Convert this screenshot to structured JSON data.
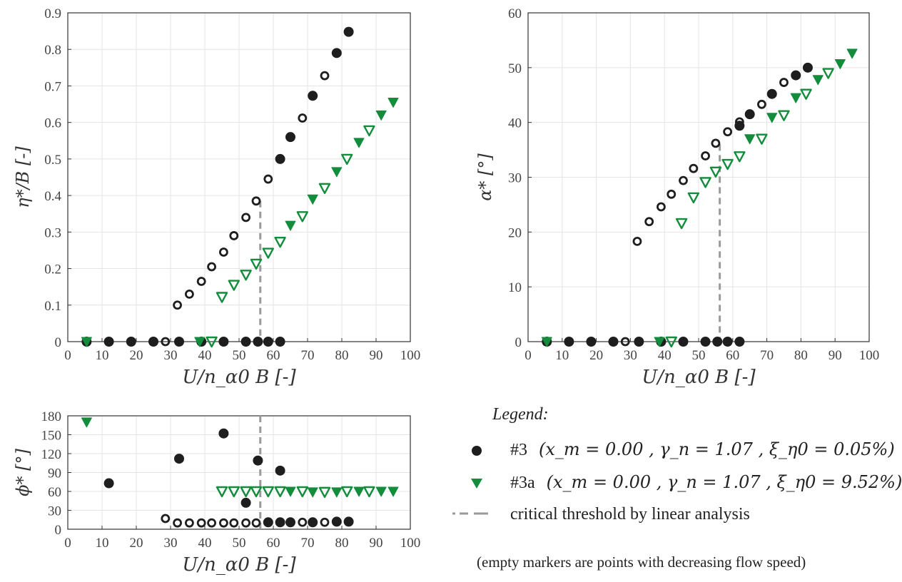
{
  "colors": {
    "series1": "#1e1e1e",
    "series2": "#138c3c",
    "critical": "#9a9a9a",
    "grid": "#e4e4e4"
  },
  "chart_data": [
    {
      "id": "eta",
      "type": "scatter",
      "xlabel": "U/n_α0 B [-]",
      "ylabel": "η*/B [-]",
      "xlim": [
        0,
        100
      ],
      "ylim": [
        0,
        0.9
      ],
      "xticks": [
        "0",
        "10",
        "20",
        "30",
        "40",
        "50",
        "60",
        "70",
        "80",
        "90",
        "100"
      ],
      "yticks": [
        "0",
        "0.1",
        "0.2",
        "0.3",
        "0.4",
        "0.5",
        "0.6",
        "0.7",
        "0.8",
        "0.9"
      ],
      "grid": true,
      "critical_x": 56.2,
      "series": [
        {
          "name": "#3",
          "marker": "circle",
          "points": [
            {
              "x": 5.5,
              "y": 0,
              "filled": true
            },
            {
              "x": 12,
              "y": 0,
              "filled": true
            },
            {
              "x": 18.5,
              "y": 0,
              "filled": true
            },
            {
              "x": 25,
              "y": 0,
              "filled": true
            },
            {
              "x": 28.5,
              "y": 0,
              "filled": false
            },
            {
              "x": 32.5,
              "y": 0,
              "filled": true
            },
            {
              "x": 39,
              "y": 0,
              "filled": true
            },
            {
              "x": 45.5,
              "y": 0,
              "filled": true
            },
            {
              "x": 52,
              "y": 0,
              "filled": true
            },
            {
              "x": 55.5,
              "y": 0,
              "filled": true
            },
            {
              "x": 58.5,
              "y": 0,
              "filled": true
            },
            {
              "x": 62,
              "y": 0,
              "filled": true
            },
            {
              "x": 32,
              "y": 0.1,
              "filled": false
            },
            {
              "x": 35.5,
              "y": 0.13,
              "filled": false
            },
            {
              "x": 39,
              "y": 0.165,
              "filled": false
            },
            {
              "x": 42,
              "y": 0.205,
              "filled": false
            },
            {
              "x": 45.5,
              "y": 0.245,
              "filled": false
            },
            {
              "x": 48.5,
              "y": 0.29,
              "filled": false
            },
            {
              "x": 52,
              "y": 0.34,
              "filled": false
            },
            {
              "x": 55,
              "y": 0.385,
              "filled": false
            },
            {
              "x": 58.5,
              "y": 0.445,
              "filled": false
            },
            {
              "x": 62,
              "y": 0.5,
              "filled": true
            },
            {
              "x": 65,
              "y": 0.56,
              "filled": true
            },
            {
              "x": 68.5,
              "y": 0.612,
              "filled": false
            },
            {
              "x": 71.5,
              "y": 0.673,
              "filled": true
            },
            {
              "x": 75,
              "y": 0.728,
              "filled": false
            },
            {
              "x": 78.5,
              "y": 0.79,
              "filled": true
            },
            {
              "x": 82,
              "y": 0.848,
              "filled": true
            }
          ]
        },
        {
          "name": "#3a",
          "marker": "triangle",
          "points": [
            {
              "x": 5.5,
              "y": 0,
              "filled": true
            },
            {
              "x": 38.5,
              "y": 0,
              "filled": true
            },
            {
              "x": 42,
              "y": 0,
              "filled": false
            },
            {
              "x": 45,
              "y": 0.122,
              "filled": false
            },
            {
              "x": 48.5,
              "y": 0.155,
              "filled": false
            },
            {
              "x": 52,
              "y": 0.183,
              "filled": false
            },
            {
              "x": 55,
              "y": 0.213,
              "filled": false
            },
            {
              "x": 58.5,
              "y": 0.243,
              "filled": false
            },
            {
              "x": 62,
              "y": 0.273,
              "filled": false
            },
            {
              "x": 65,
              "y": 0.318,
              "filled": true
            },
            {
              "x": 68.5,
              "y": 0.343,
              "filled": false
            },
            {
              "x": 71.5,
              "y": 0.39,
              "filled": true
            },
            {
              "x": 75,
              "y": 0.42,
              "filled": false
            },
            {
              "x": 78.5,
              "y": 0.465,
              "filled": true
            },
            {
              "x": 81.5,
              "y": 0.5,
              "filled": false
            },
            {
              "x": 85,
              "y": 0.545,
              "filled": true
            },
            {
              "x": 88,
              "y": 0.578,
              "filled": false
            },
            {
              "x": 91.5,
              "y": 0.62,
              "filled": true
            },
            {
              "x": 95,
              "y": 0.655,
              "filled": true
            }
          ]
        }
      ]
    },
    {
      "id": "alpha",
      "type": "scatter",
      "xlabel": "U/n_α0 B [-]",
      "ylabel": "α* [°]",
      "xlim": [
        0,
        100
      ],
      "ylim": [
        0,
        60
      ],
      "xticks": [
        "0",
        "10",
        "20",
        "30",
        "40",
        "50",
        "60",
        "70",
        "80",
        "90",
        "100"
      ],
      "yticks": [
        "0",
        "10",
        "20",
        "30",
        "40",
        "50",
        "60"
      ],
      "grid": true,
      "critical_x": 56.2,
      "series": [
        {
          "name": "#3",
          "marker": "circle",
          "points": [
            {
              "x": 5.5,
              "y": 0,
              "filled": true
            },
            {
              "x": 12,
              "y": 0,
              "filled": true
            },
            {
              "x": 18.5,
              "y": 0,
              "filled": true
            },
            {
              "x": 25,
              "y": 0,
              "filled": true
            },
            {
              "x": 28.5,
              "y": 0,
              "filled": false
            },
            {
              "x": 32.5,
              "y": 0,
              "filled": true
            },
            {
              "x": 39,
              "y": 0,
              "filled": true
            },
            {
              "x": 45.5,
              "y": 0,
              "filled": true
            },
            {
              "x": 52,
              "y": 0,
              "filled": true
            },
            {
              "x": 55.5,
              "y": 0,
              "filled": true
            },
            {
              "x": 58.5,
              "y": 0,
              "filled": true
            },
            {
              "x": 62,
              "y": 0,
              "filled": true
            },
            {
              "x": 32,
              "y": 18.3,
              "filled": false
            },
            {
              "x": 35.5,
              "y": 21.9,
              "filled": false
            },
            {
              "x": 39,
              "y": 24.6,
              "filled": false
            },
            {
              "x": 42,
              "y": 26.9,
              "filled": false
            },
            {
              "x": 45.5,
              "y": 29.4,
              "filled": false
            },
            {
              "x": 48.5,
              "y": 31.6,
              "filled": false
            },
            {
              "x": 52,
              "y": 33.9,
              "filled": false
            },
            {
              "x": 55,
              "y": 36.2,
              "filled": false
            },
            {
              "x": 58.5,
              "y": 38.3,
              "filled": false
            },
            {
              "x": 62,
              "y": 40.1,
              "filled": false
            },
            {
              "x": 62,
              "y": 39.4,
              "filled": true
            },
            {
              "x": 65,
              "y": 41.5,
              "filled": true
            },
            {
              "x": 68.5,
              "y": 43.3,
              "filled": false
            },
            {
              "x": 71.5,
              "y": 45.2,
              "filled": true
            },
            {
              "x": 75,
              "y": 47.3,
              "filled": false
            },
            {
              "x": 78.5,
              "y": 48.6,
              "filled": true
            },
            {
              "x": 82,
              "y": 50,
              "filled": true
            }
          ]
        },
        {
          "name": "#3a",
          "marker": "triangle",
          "points": [
            {
              "x": 5.5,
              "y": 0,
              "filled": true
            },
            {
              "x": 38.5,
              "y": 0,
              "filled": true
            },
            {
              "x": 42,
              "y": 0,
              "filled": false
            },
            {
              "x": 45,
              "y": 21.6,
              "filled": false
            },
            {
              "x": 48.5,
              "y": 26.3,
              "filled": false
            },
            {
              "x": 52,
              "y": 29.1,
              "filled": false
            },
            {
              "x": 55,
              "y": 31,
              "filled": false
            },
            {
              "x": 58.5,
              "y": 32.4,
              "filled": false
            },
            {
              "x": 62,
              "y": 33.8,
              "filled": false
            },
            {
              "x": 65,
              "y": 37,
              "filled": true
            },
            {
              "x": 68.5,
              "y": 37,
              "filled": false
            },
            {
              "x": 71.5,
              "y": 40.9,
              "filled": true
            },
            {
              "x": 75,
              "y": 41.3,
              "filled": false
            },
            {
              "x": 78.5,
              "y": 44.5,
              "filled": true
            },
            {
              "x": 81.5,
              "y": 45.2,
              "filled": false
            },
            {
              "x": 85,
              "y": 47.8,
              "filled": true
            },
            {
              "x": 88,
              "y": 49,
              "filled": false
            },
            {
              "x": 91.5,
              "y": 50.7,
              "filled": true
            },
            {
              "x": 95,
              "y": 52.6,
              "filled": true
            }
          ]
        }
      ]
    },
    {
      "id": "phi",
      "type": "scatter",
      "xlabel": "U/n_α0 B [-]",
      "ylabel": "ϕ* [°]",
      "xlim": [
        0,
        100
      ],
      "ylim": [
        0,
        180
      ],
      "xticks": [
        "0",
        "10",
        "20",
        "30",
        "40",
        "50",
        "60",
        "70",
        "80",
        "90",
        "100"
      ],
      "yticks": [
        "0",
        "30",
        "60",
        "90",
        "120",
        "150",
        "180"
      ],
      "grid": true,
      "critical_x": 56.2,
      "series": [
        {
          "name": "#3",
          "marker": "circle",
          "points": [
            {
              "x": 12,
              "y": 73,
              "filled": true
            },
            {
              "x": 28.5,
              "y": 17,
              "filled": false
            },
            {
              "x": 32.5,
              "y": 112,
              "filled": true
            },
            {
              "x": 45.5,
              "y": 152,
              "filled": true
            },
            {
              "x": 52,
              "y": 42,
              "filled": true
            },
            {
              "x": 55.5,
              "y": 109,
              "filled": true
            },
            {
              "x": 62,
              "y": 93,
              "filled": true
            },
            {
              "x": 32,
              "y": 10,
              "filled": false
            },
            {
              "x": 35.5,
              "y": 10,
              "filled": false
            },
            {
              "x": 39,
              "y": 10,
              "filled": false
            },
            {
              "x": 42,
              "y": 10,
              "filled": false
            },
            {
              "x": 45.5,
              "y": 10,
              "filled": false
            },
            {
              "x": 48.5,
              "y": 10,
              "filled": false
            },
            {
              "x": 52,
              "y": 10,
              "filled": false
            },
            {
              "x": 55,
              "y": 10,
              "filled": false
            },
            {
              "x": 58.5,
              "y": 11,
              "filled": true
            },
            {
              "x": 62,
              "y": 11,
              "filled": true
            },
            {
              "x": 65,
              "y": 11,
              "filled": true
            },
            {
              "x": 68.5,
              "y": 11,
              "filled": false
            },
            {
              "x": 71.5,
              "y": 11,
              "filled": true
            },
            {
              "x": 75,
              "y": 11,
              "filled": false
            },
            {
              "x": 78.5,
              "y": 12,
              "filled": true
            },
            {
              "x": 82,
              "y": 12,
              "filled": true
            }
          ]
        },
        {
          "name": "#3a",
          "marker": "triangle",
          "points": [
            {
              "x": 5.5,
              "y": 170,
              "filled": true
            },
            {
              "x": 45,
              "y": 60,
              "filled": false
            },
            {
              "x": 48.5,
              "y": 60,
              "filled": false
            },
            {
              "x": 52,
              "y": 60,
              "filled": false
            },
            {
              "x": 55,
              "y": 60,
              "filled": false
            },
            {
              "x": 58.5,
              "y": 60,
              "filled": false
            },
            {
              "x": 62,
              "y": 60,
              "filled": false
            },
            {
              "x": 65,
              "y": 60,
              "filled": true
            },
            {
              "x": 68.5,
              "y": 60,
              "filled": false
            },
            {
              "x": 71.5,
              "y": 59,
              "filled": true
            },
            {
              "x": 75,
              "y": 59,
              "filled": false
            },
            {
              "x": 78.5,
              "y": 59,
              "filled": true
            },
            {
              "x": 81.5,
              "y": 60,
              "filled": false
            },
            {
              "x": 85,
              "y": 60,
              "filled": true
            },
            {
              "x": 88,
              "y": 60,
              "filled": false
            },
            {
              "x": 91.5,
              "y": 60,
              "filled": true
            },
            {
              "x": 95,
              "y": 60,
              "filled": true
            }
          ]
        }
      ]
    }
  ],
  "legend": {
    "title": "Legend:",
    "entries": [
      {
        "label": "#3",
        "params": "(x_m = 0.00 , γ_n = 1.07 , ξ_η0 = 0.05%)"
      },
      {
        "label": "#3a",
        "params": "(x_m = 0.00 , γ_n = 1.07 , ξ_η0 = 9.52%)"
      },
      {
        "label": "critical threshold by linear analysis",
        "params": ""
      }
    ],
    "note": "(empty markers are points with decreasing flow speed)"
  }
}
